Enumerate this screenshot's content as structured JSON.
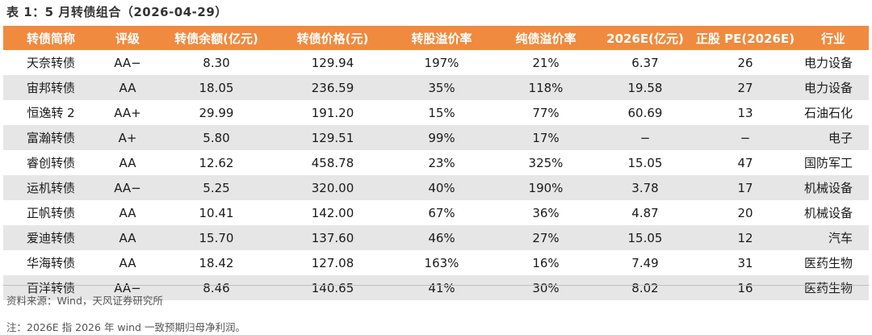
{
  "title": "表 1：5 月转债组合（2026-04-29）",
  "headers": [
    "转债简称",
    "评级",
    "转债余额(亿元)",
    "转债价格(元)",
    "转股溢价率",
    "纯债溢价率",
    "2026E(亿元)",
    "正股 PE(2026E)",
    "行业"
  ],
  "rows": [
    [
      "天奈转债",
      "AA−",
      "8.30",
      "129.94",
      "197%",
      "21%",
      "6.37",
      "26",
      "电力设备"
    ],
    [
      "宙邦转债",
      "AA",
      "18.05",
      "236.59",
      "35%",
      "118%",
      "19.58",
      "27",
      "电力设备"
    ],
    [
      "恒逸转 2",
      "AA+",
      "29.99",
      "191.20",
      "15%",
      "77%",
      "60.69",
      "13",
      "石油石化"
    ],
    [
      "富瀚转债",
      "A+",
      "5.80",
      "129.51",
      "99%",
      "17%",
      "−",
      "−",
      "电子"
    ],
    [
      "睿创转债",
      "AA",
      "12.62",
      "458.78",
      "23%",
      "325%",
      "15.05",
      "47",
      "国防军工"
    ],
    [
      "运机转债",
      "AA−",
      "5.25",
      "320.00",
      "40%",
      "190%",
      "3.78",
      "17",
      "机械设备"
    ],
    [
      "正帆转债",
      "AA",
      "10.41",
      "142.00",
      "67%",
      "36%",
      "4.87",
      "20",
      "机械设备"
    ],
    [
      "爱迪转债",
      "AA",
      "15.70",
      "137.60",
      "46%",
      "27%",
      "15.05",
      "12",
      "汽车"
    ],
    [
      "华海转债",
      "AA",
      "18.42",
      "127.08",
      "163%",
      "16%",
      "7.49",
      "31",
      "医药生物"
    ],
    [
      "百洋转债",
      "AA−",
      "8.46",
      "140.65",
      "41%",
      "30%",
      "8.02",
      "16",
      "医药生物"
    ]
  ],
  "source": "资料来源：Wind，天风证券研究所",
  "note": "注：2026E 指 2026 年 wind 一致预期归母净利润。",
  "colors": {
    "header_bg": "#f08a3e",
    "stripe_bg": "#e6e6e6"
  }
}
